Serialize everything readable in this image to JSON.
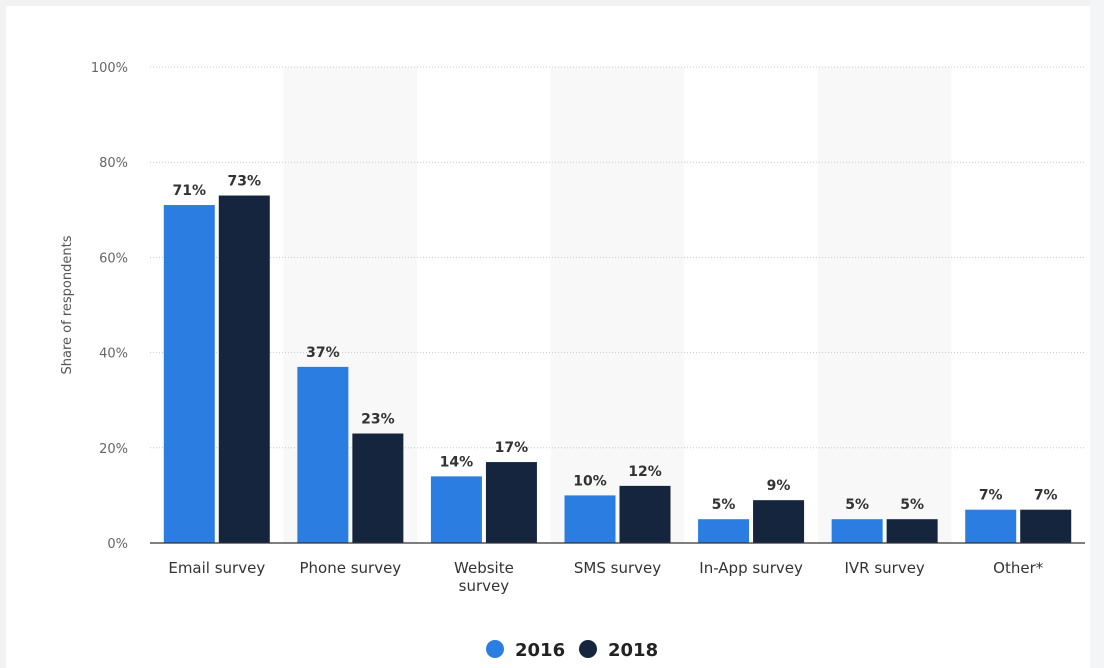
{
  "chart_data": {
    "type": "bar",
    "ylabel": "Share of respondents",
    "xlabel": "",
    "ylim": [
      0,
      100
    ],
    "yticks": [
      "0%",
      "20%",
      "40%",
      "60%",
      "80%",
      "100%"
    ],
    "grid": true,
    "legend_position": "bottom",
    "categories": [
      "Email survey",
      "Phone survey",
      "Website survey",
      "SMS survey",
      "In-App survey",
      "IVR survey",
      "Other*"
    ],
    "series": [
      {
        "name": "2016",
        "color": "#2b7de2",
        "values": [
          71,
          37,
          14,
          10,
          5,
          5,
          7
        ],
        "labels": [
          "71%",
          "37%",
          "14%",
          "10%",
          "5%",
          "5%",
          "7%"
        ]
      },
      {
        "name": "2018",
        "color": "#14253d",
        "values": [
          73,
          23,
          17,
          12,
          9,
          5,
          7
        ],
        "labels": [
          "73%",
          "23%",
          "17%",
          "12%",
          "9%",
          "5%",
          "7%"
        ]
      }
    ]
  }
}
